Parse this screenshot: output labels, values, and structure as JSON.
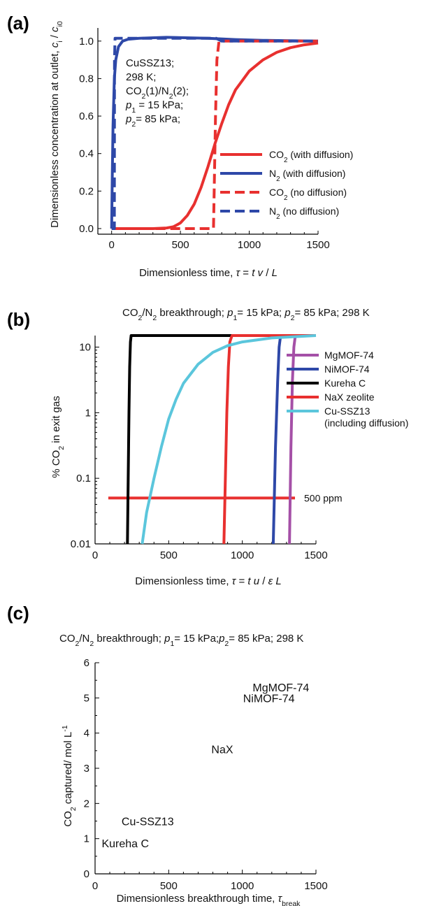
{
  "chart_data": [
    {
      "panel_label": "(a)",
      "type": "line",
      "title": "",
      "xlabel_parts": [
        "Dimensionless time, ",
        "τ",
        " = ",
        "t v",
        " / ",
        "L"
      ],
      "ylabel_parts": [
        "Dimensionless concentration at outlet, ",
        "c",
        "i",
        " / ",
        "c",
        "i0"
      ],
      "xlim": [
        -100,
        1500
      ],
      "ylim": [
        -0.03,
        1.07
      ],
      "xticks": [
        0,
        500,
        1000,
        1500
      ],
      "yticks": [
        0.0,
        0.2,
        0.4,
        0.6,
        0.8,
        1.0
      ],
      "ytick_labels": [
        "0.0",
        "0.2",
        "0.4",
        "0.6",
        "0.8",
        "1.0"
      ],
      "annotation_lines": [
        "CuSSZ13;",
        "298 K;",
        "CO2(1)/N2(2);",
        "p1 = 15 kPa;",
        "p2= 85 kPa;"
      ],
      "series": [
        {
          "name": "CO2 (with diffusion)",
          "name_parts": [
            "CO",
            "2",
            " (with diffusion)"
          ],
          "color": "#e8302f",
          "dash": "solid",
          "x": [
            0,
            300,
            400,
            450,
            500,
            550,
            600,
            650,
            700,
            750,
            800,
            850,
            900,
            1000,
            1100,
            1200,
            1300,
            1400,
            1500
          ],
          "y": [
            0,
            0,
            0.003,
            0.01,
            0.03,
            0.07,
            0.13,
            0.22,
            0.33,
            0.45,
            0.56,
            0.66,
            0.74,
            0.84,
            0.9,
            0.94,
            0.965,
            0.98,
            0.99
          ]
        },
        {
          "name": "N2 (with diffusion)",
          "name_parts": [
            "N",
            "2",
            " (with diffusion)"
          ],
          "color": "#2e48a8",
          "dash": "solid",
          "x": [
            0,
            5,
            10,
            20,
            30,
            50,
            80,
            120,
            200,
            400,
            700,
            900,
            1100,
            1300,
            1500
          ],
          "y": [
            0,
            0.3,
            0.55,
            0.8,
            0.9,
            0.97,
            1.0,
            1.01,
            1.015,
            1.02,
            1.015,
            1.008,
            1.004,
            1.002,
            1.0
          ]
        },
        {
          "name": "CO2 (no diffusion)",
          "name_parts": [
            "CO",
            "2",
            " (no diffusion)"
          ],
          "color": "#e8302f",
          "dash": "dashed",
          "x": [
            0,
            740,
            745,
            755,
            765,
            780,
            1500
          ],
          "y": [
            0,
            0,
            0.2,
            0.6,
            0.9,
            1.0,
            1.0
          ]
        },
        {
          "name": "N2 (no diffusion)",
          "name_parts": [
            "N",
            "2",
            " (no diffusion)"
          ],
          "color": "#2e48a8",
          "dash": "dashed",
          "x": [
            0,
            20,
            21,
            25,
            760,
            800,
            1500
          ],
          "y": [
            0,
            0,
            0.9,
            1.015,
            1.015,
            1.0,
            1.0
          ]
        }
      ]
    },
    {
      "panel_label": "(b)",
      "type": "line",
      "title_parts": [
        "CO",
        "2",
        "/N",
        "2",
        " breakthrough; ",
        "p",
        "1",
        "= 15  kPa; ",
        "p",
        "2",
        "= 85  kPa; 298 K"
      ],
      "xlabel_parts": [
        "Dimensionless time, ",
        "τ",
        " = ",
        "t u",
        " / ",
        "ε L"
      ],
      "ylabel_parts": [
        "% CO",
        "2",
        " in exit gas"
      ],
      "xscale": "linear",
      "yscale": "log",
      "xlim": [
        0,
        1500
      ],
      "ylim": [
        0.01,
        15
      ],
      "xticks": [
        0,
        500,
        1000,
        1500
      ],
      "yticks": [
        0.01,
        0.1,
        1,
        10
      ],
      "ytick_labels": [
        "0.01",
        "0.1",
        "1",
        "10"
      ],
      "hline": {
        "y": 0.05,
        "x": [
          90,
          1500
        ],
        "label": "500 ppm",
        "color": "#e8302f"
      },
      "series": [
        {
          "name": "MgMOF-74",
          "name_parts": [
            "MgMOF-74"
          ],
          "color": "#a550a7",
          "x": [
            1320,
            1330,
            1340,
            1350,
            1360,
            1500
          ],
          "y": [
            0.01,
            0.3,
            3,
            10,
            15,
            15
          ]
        },
        {
          "name": "NiMOF-74",
          "name_parts": [
            "NiMOF-74"
          ],
          "color": "#2e48a8",
          "x": [
            1210,
            1225,
            1240,
            1250,
            1260,
            1500
          ],
          "y": [
            0.01,
            0.3,
            3,
            10,
            15,
            15
          ]
        },
        {
          "name": "Kureha C",
          "name_parts": [
            "Kureha C"
          ],
          "color": "#000000",
          "x": [
            220,
            225,
            230,
            235,
            240,
            245,
            1500
          ],
          "y": [
            0.01,
            0.1,
            1,
            5,
            12,
            15,
            15
          ]
        },
        {
          "name": "NaX zeolite",
          "name_parts": [
            "NaX zeolite"
          ],
          "color": "#e8302f",
          "x": [
            875,
            885,
            895,
            905,
            915,
            930,
            1500
          ],
          "y": [
            0.01,
            0.1,
            1,
            5,
            12,
            15,
            15
          ]
        },
        {
          "name": "Cu-SSZ13 (including diffusion)",
          "name_parts": [
            "Cu-SSZ13"
          ],
          "name_parts_2": [
            "(including diffusion)"
          ],
          "color": "#5bc6dc",
          "x": [
            320,
            350,
            400,
            450,
            500,
            550,
            600,
            700,
            800,
            900,
            1000,
            1200,
            1500
          ],
          "y": [
            0.01,
            0.03,
            0.1,
            0.3,
            0.8,
            1.6,
            2.8,
            5.5,
            8.3,
            10.5,
            12,
            13.8,
            15
          ]
        }
      ]
    },
    {
      "panel_label": "(c)",
      "type": "scatter",
      "title_parts": [
        "CO",
        "2",
        "/N",
        "2",
        " breakthrough; ",
        "p",
        "1",
        "= 15  kPa;",
        "p",
        "2",
        "= 85  kPa; 298 K"
      ],
      "xlabel_parts": [
        "Dimensionless breakthrough time, ",
        "τ",
        "break"
      ],
      "ylabel_parts": [
        "CO",
        "2",
        " captured/ mol L",
        "-1"
      ],
      "xlim": [
        0,
        1500
      ],
      "ylim": [
        0,
        6
      ],
      "xticks": [
        0,
        500,
        1000,
        1500
      ],
      "yticks": [
        0,
        1,
        2,
        3,
        4,
        5,
        6
      ],
      "ytick_labels": [
        "0",
        "1",
        "2",
        "3",
        "4",
        "5",
        "6"
      ],
      "points": [
        {
          "label": "MgMOF-74",
          "x": 1070,
          "y": 5.3
        },
        {
          "label": "NiMOF-74",
          "x": 1005,
          "y": 5.0
        },
        {
          "label": "NaX",
          "x": 790,
          "y": 3.55
        },
        {
          "label": "Cu-SSZ13",
          "x": 180,
          "y": 1.5
        },
        {
          "label": "Kureha C",
          "x": 45,
          "y": 0.87
        }
      ]
    }
  ]
}
